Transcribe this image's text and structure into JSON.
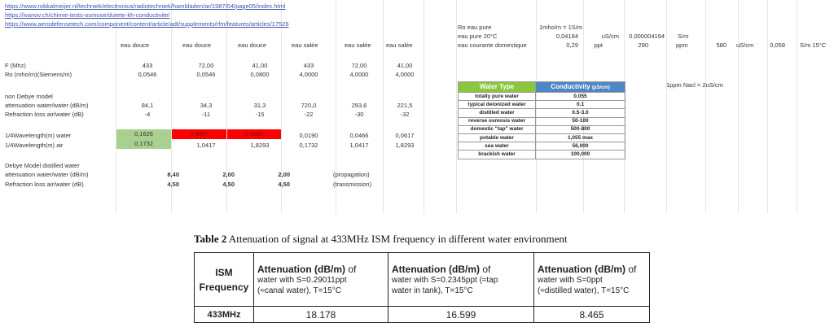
{
  "links": [
    "https://www.robkalmeijer.nl/techniek/electronica/radiotechniek/hambladen/ar/1987/04/page05/index.html",
    "https://ivanov.ch/chimie-tests-osmose/durete-kh-conductivite/",
    "https://www.aerodefensetech.com/component/content/article/adt/supplements/rfm/features/articles/17526"
  ],
  "column_headers": [
    "eau douce",
    "eau douce",
    "eau douce",
    "eau salée",
    "eau salée",
    "eau salée"
  ],
  "rows": {
    "freq": {
      "label": "F (Mhz)",
      "values": [
        "433",
        "72,00",
        "41,00",
        "433",
        "72,00",
        "41,00"
      ]
    },
    "ro": {
      "label": "Ro (mho/m)(Siemens/m)",
      "values": [
        "0,0546",
        "0,0546",
        "0,0800",
        "4,0000",
        "4,0000",
        "4,0000"
      ]
    },
    "non_debye": {
      "label": "non Debye model"
    },
    "atten": {
      "label": "attenuation water/water (dB/m)",
      "values": [
        "84,1",
        "34,3",
        "31,3",
        "720,0",
        "293,6",
        "221,5"
      ]
    },
    "refr": {
      "label": "Refraction loss air/water (dB)",
      "values": [
        "-4",
        "-11",
        "-15",
        "-22",
        "-30",
        "-32"
      ]
    },
    "qw_water": {
      "label": "1/4Wavelength(m) water",
      "values": [
        "0,1626",
        "0,3987",
        "0,4365",
        "0,0190",
        "0,0466",
        "0,0617"
      ]
    },
    "qw_air": {
      "label": "1/4Wavelength(m) air",
      "values": [
        "0,1732",
        "1,0417",
        "1,8293",
        "0,1732",
        "1,0417",
        "1,8293"
      ]
    },
    "debye_title": {
      "label": "Debye Model distilled water"
    },
    "debye_atten": {
      "label": "attenuation water/water (dB/m)",
      "values": [
        "8,40",
        "2,00",
        "2,00"
      ],
      "note": "(propagation)"
    },
    "debye_refr": {
      "label": "Refraction loss air/water (dB)",
      "values": [
        "4,50",
        "4,50",
        "4,50"
      ],
      "note": "(transmission)"
    }
  },
  "ro_block": {
    "row1": {
      "label": "Ro eau pure",
      "value": "1mho/m = 1S/m"
    },
    "row2": {
      "label": "eau pure 20°C",
      "v1": "0,04194",
      "u1": "uS/cm",
      "v2": "0,000004194",
      "u2": "S/m"
    },
    "row3": {
      "label": "eau courante domestique",
      "v1": "0,29",
      "u1": "ppt",
      "v2": "290",
      "u2": "ppm",
      "v3": "580",
      "u3": "uS/cm",
      "v4": "0,058",
      "u4": "S/m 15°C"
    }
  },
  "ppm_note": "1ppm Nacl = 2uS/cm",
  "water_table": {
    "header_type": "Water Type",
    "header_cond": "Conductivity",
    "header_unit": "(µS/cm)",
    "rows": [
      {
        "type": "totally pure water",
        "cond": "0.055"
      },
      {
        "type": "typical deionized water",
        "cond": "0.1"
      },
      {
        "type": "distilled water",
        "cond": "0.5-3.0"
      },
      {
        "type": "reverse osmosis water",
        "cond": "50-100"
      },
      {
        "type": "domestic \"tap\" water",
        "cond": "500-800"
      },
      {
        "type": "potable water",
        "cond": "1,055 max"
      },
      {
        "type": "sea water",
        "cond": "56,000"
      },
      {
        "type": "brackish water",
        "cond": "100,000"
      }
    ]
  },
  "paper": {
    "title_label": "Table 2",
    "title_text": "Attenuation of signal at 433MHz ISM frequency in different water environment",
    "col0": "ISM",
    "col0b": "Frequency",
    "col1_bold": "Attenuation (dB/m)",
    "col1_rest": " of",
    "col1_line2": "water with S=0.29011ppt",
    "col1_line3": "(≈canal water), T=15°C",
    "col2_bold": "Attenuation (dB/m)",
    "col2_rest": " of",
    "col2_line2": "water with S=0.2345ppt (≈tap",
    "col2_line3": "water in tank), T=15°C",
    "col3_bold": "Attenuation (dB/m)",
    "col3_rest": " of",
    "col3_line2": "water with S=0ppt",
    "col3_line3": "(≈distilled water), T=15°C",
    "row_freq": "433MHz",
    "row_v1": "18.178",
    "row_v2": "16.599",
    "row_v3": "8.465"
  },
  "colors": {
    "green_cell": "#a9d08e",
    "red_cell": "#ff0000",
    "water_type_header": "#8cc63f",
    "conductivity_header": "#4f86c6"
  }
}
